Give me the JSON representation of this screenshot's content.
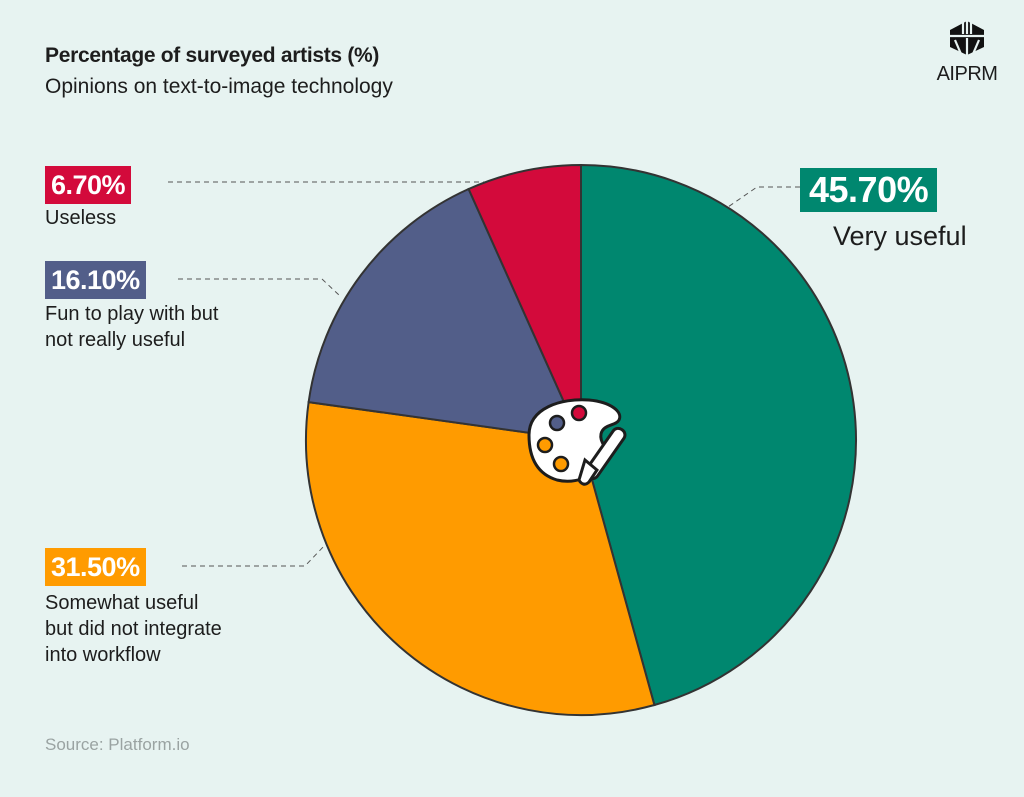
{
  "header": {
    "title": "Percentage of surveyed artists (%)",
    "subtitle": "Opinions on text-to-image technology"
  },
  "logo": {
    "text": "AIPRM",
    "icon": "aiprm-logo-icon"
  },
  "source": "Source: Platform.io",
  "center_icon": "palette-icon",
  "chart_data": {
    "type": "pie",
    "title": "Percentage of surveyed artists (%)",
    "subtitle": "Opinions on text-to-image technology",
    "start": "12 o'clock, clockwise",
    "slices": [
      {
        "label": "Very useful",
        "value": 45.7,
        "display": "45.70%",
        "color": "#00876f"
      },
      {
        "label": "Somewhat useful but did not integrate into workflow",
        "display": "31.50%",
        "value": 31.5,
        "color": "#ff9b00",
        "lines": [
          "Somewhat useful",
          "but did not integrate",
          "into workflow"
        ]
      },
      {
        "label": "Fun to play with but not really useful",
        "display": "16.10%",
        "value": 16.1,
        "color": "#525e89",
        "lines": [
          "Fun to play with but",
          "not really useful"
        ]
      },
      {
        "label": "Useless",
        "display": "6.70%",
        "value": 6.7,
        "color": "#d30a3b"
      }
    ]
  }
}
